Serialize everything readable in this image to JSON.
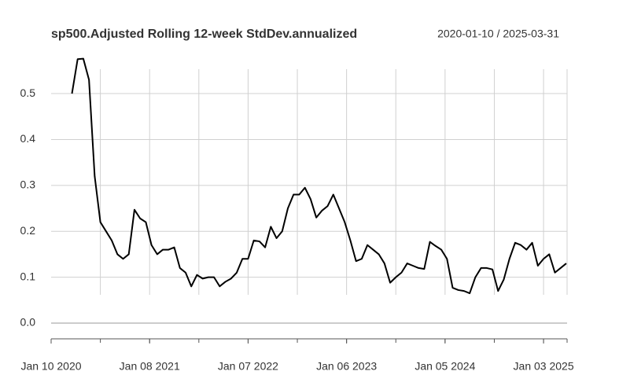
{
  "chart_data": {
    "type": "line",
    "title": "sp500.Adjusted Rolling 12-week StdDev.annualized",
    "subtitle": "2020-01-10 / 2025-03-31",
    "x": [
      "2020-03-27",
      "2020-04-17",
      "2020-05-08",
      "2020-05-29",
      "2020-06-19",
      "2020-07-10",
      "2020-07-31",
      "2020-08-21",
      "2020-09-11",
      "2020-10-02",
      "2020-10-23",
      "2020-11-13",
      "2020-12-04",
      "2020-12-25",
      "2021-01-15",
      "2021-02-05",
      "2021-02-26",
      "2021-03-19",
      "2021-04-09",
      "2021-04-30",
      "2021-05-21",
      "2021-06-11",
      "2021-07-02",
      "2021-07-23",
      "2021-08-13",
      "2021-09-03",
      "2021-09-24",
      "2021-10-15",
      "2021-11-05",
      "2021-11-26",
      "2021-12-17",
      "2022-01-07",
      "2022-01-28",
      "2022-02-18",
      "2022-03-11",
      "2022-04-01",
      "2022-04-22",
      "2022-05-13",
      "2022-06-03",
      "2022-06-24",
      "2022-07-15",
      "2022-08-05",
      "2022-08-26",
      "2022-09-16",
      "2022-10-07",
      "2022-10-28",
      "2022-11-18",
      "2022-12-09",
      "2022-12-30",
      "2023-01-20",
      "2023-02-10",
      "2023-03-03",
      "2023-03-24",
      "2023-04-14",
      "2023-05-05",
      "2023-05-26",
      "2023-06-16",
      "2023-07-07",
      "2023-07-28",
      "2023-08-18",
      "2023-09-08",
      "2023-09-29",
      "2023-10-20",
      "2023-11-10",
      "2023-12-01",
      "2023-12-22",
      "2024-01-12",
      "2024-02-02",
      "2024-02-23",
      "2024-03-15",
      "2024-04-05",
      "2024-04-26",
      "2024-05-17",
      "2024-06-07",
      "2024-06-28",
      "2024-07-19",
      "2024-08-09",
      "2024-08-30",
      "2024-09-20",
      "2024-10-11",
      "2024-11-01",
      "2024-11-22",
      "2024-12-13",
      "2025-01-03",
      "2025-01-24",
      "2025-02-14",
      "2025-03-07",
      "2025-03-28"
    ],
    "series": [
      {
        "name": "sp500.Adjusted",
        "color": "#000000",
        "values": [
          0.5,
          0.575,
          0.576,
          0.53,
          0.32,
          0.22,
          0.2,
          0.18,
          0.15,
          0.14,
          0.15,
          0.247,
          0.228,
          0.22,
          0.17,
          0.15,
          0.16,
          0.16,
          0.165,
          0.12,
          0.11,
          0.08,
          0.105,
          0.097,
          0.1,
          0.1,
          0.08,
          0.09,
          0.097,
          0.11,
          0.14,
          0.14,
          0.18,
          0.178,
          0.165,
          0.21,
          0.185,
          0.2,
          0.25,
          0.28,
          0.28,
          0.295,
          0.27,
          0.23,
          0.245,
          0.255,
          0.28,
          0.25,
          0.22,
          0.18,
          0.135,
          0.14,
          0.17,
          0.16,
          0.15,
          0.13,
          0.088,
          0.1,
          0.11,
          0.13,
          0.125,
          0.12,
          0.118,
          0.177,
          0.168,
          0.16,
          0.14,
          0.077,
          0.072,
          0.07,
          0.065,
          0.1,
          0.12,
          0.12,
          0.117,
          0.07,
          0.095,
          0.14,
          0.175,
          0.17,
          0.16,
          0.175,
          0.125,
          0.14,
          0.15,
          0.11,
          0.12,
          0.13
        ]
      }
    ],
    "xlim": [
      "2020-01-10",
      "2025-03-31"
    ],
    "xticks": [
      {
        "value": "2020-01-10",
        "label": "Jan 10 2020"
      },
      {
        "value": "2021-01-08",
        "label": "Jan 08 2021"
      },
      {
        "value": "2022-01-07",
        "label": "Jan 07 2022"
      },
      {
        "value": "2023-01-06",
        "label": "Jan 06 2023"
      },
      {
        "value": "2024-01-05",
        "label": "Jan 05 2024"
      },
      {
        "value": "2025-01-03",
        "label": "Jan 03 2025"
      }
    ],
    "xgrid": [
      "2020-07-10",
      "2021-01-08",
      "2021-07-09",
      "2022-01-07",
      "2022-07-08",
      "2023-01-06",
      "2023-07-07",
      "2024-01-05",
      "2024-07-05",
      "2025-01-03",
      "2025-03-31"
    ],
    "ylim": [
      -0.024,
      0.596
    ],
    "yticks": [
      {
        "value": 0,
        "label": "0.0"
      },
      0.1,
      0.2,
      0.3,
      0.4,
      0.5
    ],
    "grid": true
  }
}
